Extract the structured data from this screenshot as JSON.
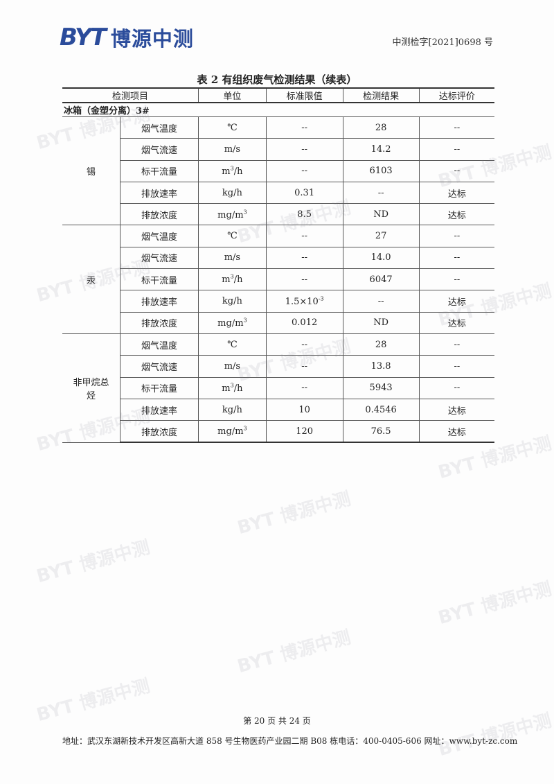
{
  "header": {
    "logo_en": "BYT",
    "logo_cn": "博源中测",
    "doc_no": "中测检字[2021]0698 号"
  },
  "watermark": "BYT 博源中测",
  "table": {
    "title": "表 2  有组织废气检测结果（续表）",
    "columns": [
      "检测项目",
      "单位",
      "标准限值",
      "检测结果",
      "达标评价"
    ],
    "section": "冰箱（金塑分离）3#",
    "groups": [
      {
        "name": "锡",
        "rows": [
          {
            "item": "烟气温度",
            "unit": "℃",
            "limit": "--",
            "result": "28",
            "eval": "--"
          },
          {
            "item": "烟气流速",
            "unit": "m/s",
            "limit": "--",
            "result": "14.2",
            "eval": "--"
          },
          {
            "item": "标干流量",
            "unit": "m3/h",
            "limit": "--",
            "result": "6103",
            "eval": "--"
          },
          {
            "item": "排放速率",
            "unit": "kg/h",
            "limit": "0.31",
            "result": "--",
            "eval": "达标"
          },
          {
            "item": "排放浓度",
            "unit": "mg/m3",
            "limit": "8.5",
            "result": "ND",
            "eval": "达标"
          }
        ]
      },
      {
        "name": "汞",
        "rows": [
          {
            "item": "烟气温度",
            "unit": "℃",
            "limit": "--",
            "result": "27",
            "eval": "--"
          },
          {
            "item": "烟气流速",
            "unit": "m/s",
            "limit": "--",
            "result": "14.0",
            "eval": "--"
          },
          {
            "item": "标干流量",
            "unit": "m3/h",
            "limit": "--",
            "result": "6047",
            "eval": "--"
          },
          {
            "item": "排放速率",
            "unit": "kg/h",
            "limit": "1.5×10-3",
            "result": "--",
            "eval": "达标"
          },
          {
            "item": "排放浓度",
            "unit": "mg/m3",
            "limit": "0.012",
            "result": "ND",
            "eval": "达标"
          }
        ]
      },
      {
        "name": "非甲烷总烃",
        "rows": [
          {
            "item": "烟气温度",
            "unit": "℃",
            "limit": "--",
            "result": "28",
            "eval": "--"
          },
          {
            "item": "烟气流速",
            "unit": "m/s",
            "limit": "--",
            "result": "13.8",
            "eval": "--"
          },
          {
            "item": "标干流量",
            "unit": "m3/h",
            "limit": "--",
            "result": "5943",
            "eval": "--"
          },
          {
            "item": "排放速率",
            "unit": "kg/h",
            "limit": "10",
            "result": "0.4546",
            "eval": "达标"
          },
          {
            "item": "排放浓度",
            "unit": "mg/m3",
            "limit": "120",
            "result": "76.5",
            "eval": "达标"
          }
        ]
      }
    ]
  },
  "footer": {
    "page": "第 20 页 共 24 页",
    "address": "地址：武汉东湖新技术开发区高新大道 858 号生物医药产业园二期 B08 栋电话：400-0405-606 网址：www.byt-zc.com"
  }
}
